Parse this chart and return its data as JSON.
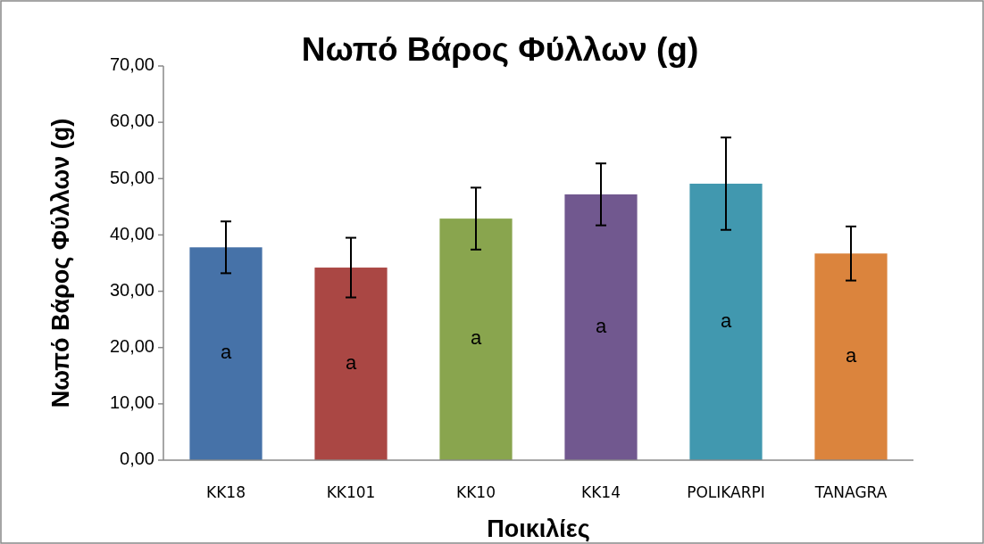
{
  "chart_data": {
    "type": "bar",
    "title": "Νωπό Βάρος Φύλλων (g)",
    "xlabel": "Ποικιλίες",
    "ylabel": "Νωπό Βάρος Φύλλων (g)",
    "categories": [
      "KK18",
      "KK101",
      "KK10",
      "KK14",
      "POLIKARPI",
      "TANAGRA"
    ],
    "values": [
      37.8,
      34.2,
      42.9,
      47.2,
      49.1,
      36.7
    ],
    "colors": [
      "#4672a8",
      "#aa4744",
      "#89a54e",
      "#71588f",
      "#4198af",
      "#db843d"
    ],
    "errors": [
      4.6,
      5.3,
      5.5,
      5.5,
      8.2,
      4.8
    ],
    "value_labels": [
      "a",
      "a",
      "a",
      "a",
      "a",
      "a"
    ],
    "ylim": [
      0,
      70
    ],
    "yticks": [
      {
        "value": 0,
        "label": "0,00"
      },
      {
        "value": 10,
        "label": "10,00"
      },
      {
        "value": 20,
        "label": "20,00"
      },
      {
        "value": 30,
        "label": "30,00"
      },
      {
        "value": 40,
        "label": "40,00"
      },
      {
        "value": 50,
        "label": "50,00"
      },
      {
        "value": 60,
        "label": "60,00"
      },
      {
        "value": 70,
        "label": "70,00"
      }
    ],
    "grid": false
  }
}
